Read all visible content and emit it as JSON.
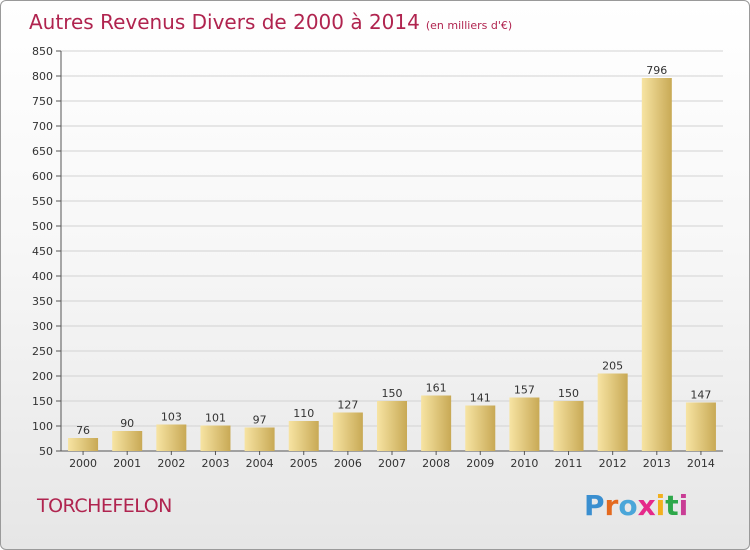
{
  "title": "Autres Revenus Divers de 2000 à 2014",
  "unit": "(en milliers d'€)",
  "commune": "TORCHEFELON",
  "logo": {
    "text": "Proxiti",
    "colors": [
      "#3a8fd0",
      "#e46a1f",
      "#4aa6d9",
      "#e5298a",
      "#f2b01e",
      "#2ea84a",
      "#c93d95"
    ]
  },
  "colors": {
    "title": "#b0244f",
    "bar_light": "#f7e4a3",
    "bar_dark": "#c8a955",
    "grid": "#d2d2d2"
  },
  "chart_data": {
    "type": "bar",
    "categories": [
      "2000",
      "2001",
      "2002",
      "2003",
      "2004",
      "2005",
      "2006",
      "2007",
      "2008",
      "2009",
      "2010",
      "2011",
      "2012",
      "2013",
      "2014"
    ],
    "values": [
      76,
      90,
      103,
      101,
      97,
      110,
      127,
      150,
      161,
      141,
      157,
      150,
      205,
      796,
      147
    ],
    "ylim": [
      50,
      850
    ],
    "yticks": [
      50,
      100,
      150,
      200,
      250,
      300,
      350,
      400,
      450,
      500,
      550,
      600,
      650,
      700,
      750,
      800,
      850
    ],
    "grid": true,
    "xlabel": "",
    "ylabel": ""
  }
}
